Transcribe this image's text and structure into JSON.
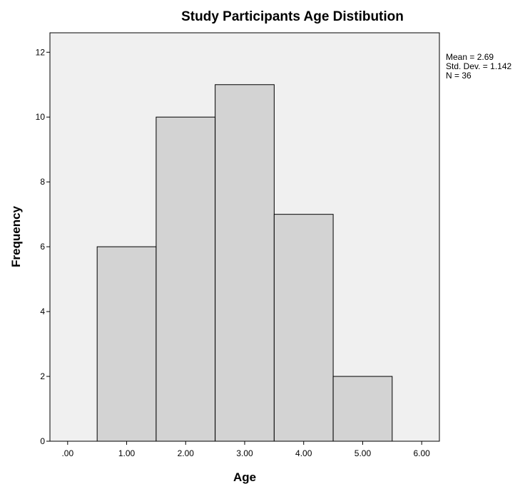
{
  "chart_data": {
    "type": "bar",
    "title": "Study  Participants Age Distibution",
    "xlabel": "Age",
    "ylabel": "Frequency",
    "x_ticks": [
      ".00",
      "1.00",
      "2.00",
      "3.00",
      "4.00",
      "5.00",
      "6.00"
    ],
    "y_ticks": [
      "0",
      "2",
      "4",
      "6",
      "8",
      "10",
      "12"
    ],
    "xlim": [
      -0.3,
      6.3
    ],
    "ylim": [
      0,
      12.6
    ],
    "bins": [
      {
        "center": 1,
        "frequency": 6
      },
      {
        "center": 2,
        "frequency": 10
      },
      {
        "center": 3,
        "frequency": 11
      },
      {
        "center": 4,
        "frequency": 7
      },
      {
        "center": 5,
        "frequency": 2
      }
    ],
    "bin_width": 1,
    "stats": {
      "mean": "Mean = 2.69",
      "std_dev": "Std. Dev. = 1.142",
      "n": "N = 36"
    },
    "grid": false,
    "colors": {
      "plot_background": "#f0f0f0",
      "bar_fill": "#d3d3d3",
      "bar_stroke": "#000000"
    }
  }
}
